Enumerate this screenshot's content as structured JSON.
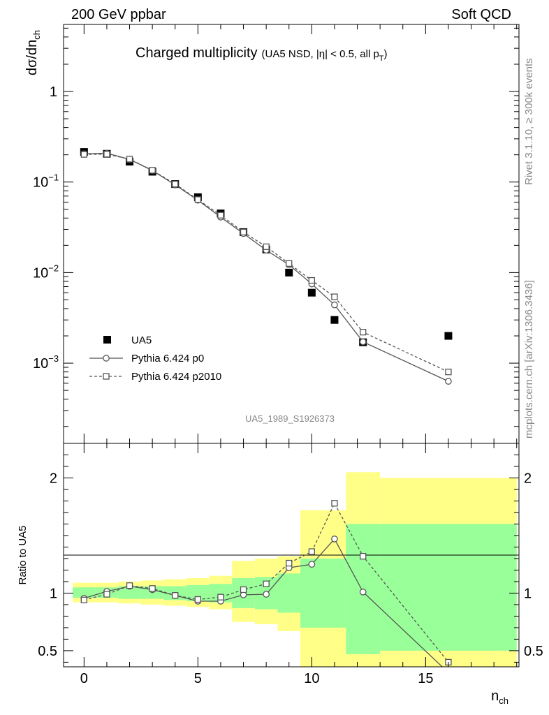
{
  "header": {
    "left": "200 GeV ppbar",
    "right": "Soft QCD"
  },
  "side_labels": {
    "rivet": "Rivet 3.1.10, ≥ 300k events",
    "mcplots": "mcplots.cern.ch [arXiv:1306.3436]"
  },
  "analysis_id": "UA5_1989_S1926373",
  "chart_data": [
    {
      "type": "scatter",
      "title": "Charged multiplicity",
      "subtitle": "(UA5 NSD, |η| < 0.5, all p",
      "subtitle_sub": "T",
      "subtitle_end": ")",
      "ylabel": "dσ/dn",
      "ylabel_sub": "ch",
      "yscale": "log",
      "xlim": [
        -0.9,
        19.1
      ],
      "ylim": [
        0.00013,
        5.5
      ],
      "yticks": [
        {
          "value": 1,
          "label": "1"
        },
        {
          "value": 0.1,
          "label": "10",
          "exp": "−1"
        },
        {
          "value": 0.01,
          "label": "10",
          "exp": "−2"
        },
        {
          "value": 0.001,
          "label": "10",
          "exp": "−3"
        }
      ],
      "legend": {
        "placement": "lower-left",
        "entries": [
          "UA5",
          "Pythia 6.424 p0",
          "Pythia 6.424 p2010"
        ]
      },
      "series": [
        {
          "name": "UA5",
          "marker": "filled-square",
          "x": [
            0,
            1,
            2,
            3,
            4,
            5,
            6,
            7,
            8,
            9,
            10,
            11,
            12.25,
            16
          ],
          "y": [
            0.215,
            0.205,
            0.168,
            0.13,
            0.095,
            0.068,
            0.045,
            0.028,
            0.018,
            0.01,
            0.006,
            0.003,
            0.0017,
            0.002
          ]
        },
        {
          "name": "Pythia 6.424 p0",
          "marker": "open-circle",
          "line": "solid",
          "x": [
            0,
            1,
            2,
            3,
            4,
            5,
            6,
            7,
            8,
            9,
            10,
            11,
            12.25,
            16
          ],
          "y": [
            0.205,
            0.208,
            0.178,
            0.134,
            0.093,
            0.063,
            0.041,
            0.027,
            0.0177,
            0.0122,
            0.0075,
            0.0044,
            0.00172,
            0.00063
          ]
        },
        {
          "name": "Pythia 6.424 p2010",
          "marker": "open-square",
          "line": "dashed",
          "x": [
            0,
            1,
            2,
            3,
            4,
            5,
            6,
            7,
            8,
            9,
            10,
            11,
            12.25,
            16
          ],
          "y": [
            0.202,
            0.203,
            0.179,
            0.135,
            0.095,
            0.064,
            0.043,
            0.028,
            0.0193,
            0.0126,
            0.0082,
            0.0054,
            0.0022,
            0.0008
          ]
        }
      ]
    },
    {
      "type": "scatter",
      "xlabel": "n",
      "xlabel_sub": "ch",
      "ylabel": "Ratio to UA5",
      "xlim": [
        -0.9,
        19.1
      ],
      "ylim": [
        0.36,
        2.3
      ],
      "xticks": [
        0,
        5,
        10,
        15
      ],
      "yticks": [
        {
          "value": 0.5,
          "label": "0.5"
        },
        {
          "value": 1,
          "label": "1"
        },
        {
          "value": 2,
          "label": "2"
        }
      ],
      "bands": [
        {
          "x0": -0.5,
          "x1": 0.5,
          "y_low": 0.92,
          "y_high": 1.09,
          "g_low": 0.96,
          "g_high": 1.05
        },
        {
          "x0": 0.5,
          "x1": 1.5,
          "y_low": 0.92,
          "y_high": 1.09,
          "g_low": 0.96,
          "g_high": 1.05
        },
        {
          "x0": 1.5,
          "x1": 2.5,
          "y_low": 0.91,
          "y_high": 1.1,
          "g_low": 0.95,
          "g_high": 1.06
        },
        {
          "x0": 2.5,
          "x1": 3.5,
          "y_low": 0.9,
          "y_high": 1.11,
          "g_low": 0.95,
          "g_high": 1.06
        },
        {
          "x0": 3.5,
          "x1": 4.5,
          "y_low": 0.89,
          "y_high": 1.12,
          "g_low": 0.94,
          "g_high": 1.06
        },
        {
          "x0": 4.5,
          "x1": 5.5,
          "y_low": 0.88,
          "y_high": 1.13,
          "g_low": 0.93,
          "g_high": 1.07
        },
        {
          "x0": 5.5,
          "x1": 6.5,
          "y_low": 0.86,
          "y_high": 1.15,
          "g_low": 0.92,
          "g_high": 1.08
        },
        {
          "x0": 6.5,
          "x1": 7.5,
          "y_low": 0.75,
          "y_high": 1.28,
          "g_low": 0.87,
          "g_high": 1.13
        },
        {
          "x0": 7.5,
          "x1": 8.5,
          "y_low": 0.73,
          "y_high": 1.3,
          "g_low": 0.86,
          "g_high": 1.14
        },
        {
          "x0": 8.5,
          "x1": 9.5,
          "y_low": 0.67,
          "y_high": 1.32,
          "g_low": 0.83,
          "g_high": 1.17
        },
        {
          "x0": 9.5,
          "x1": 10.5,
          "y_low": 0.3,
          "y_high": 1.72,
          "g_low": 0.7,
          "g_high": 1.3
        },
        {
          "x0": 10.5,
          "x1": 11.5,
          "y_low": 0.3,
          "y_high": 1.72,
          "g_low": 0.7,
          "g_high": 1.3
        },
        {
          "x0": 11.5,
          "x1": 13.0,
          "y_low": 0.3,
          "y_high": 2.05,
          "g_low": 0.47,
          "g_high": 1.6
        },
        {
          "x0": 13.0,
          "x1": 19.0,
          "y_low": 0.3,
          "y_high": 2.0,
          "g_low": 0.5,
          "g_high": 1.6
        }
      ],
      "series": [
        {
          "name": "Pythia 6.424 p0",
          "marker": "open-circle",
          "line": "solid",
          "x": [
            0,
            1,
            2,
            3,
            4,
            5,
            6,
            7,
            8,
            9,
            10,
            11,
            12.25,
            16
          ],
          "y": [
            0.955,
            1.015,
            1.06,
            1.03,
            0.98,
            0.93,
            0.93,
            0.985,
            0.99,
            1.22,
            1.25,
            1.47,
            1.01,
            0.31
          ]
        },
        {
          "name": "Pythia 6.424 p2010",
          "marker": "open-square",
          "line": "dashed",
          "x": [
            0,
            1,
            2,
            3,
            4,
            5,
            6,
            7,
            8,
            9,
            10,
            11,
            12.25,
            16
          ],
          "y": [
            0.94,
            0.99,
            1.065,
            1.04,
            0.98,
            0.945,
            0.965,
            1.03,
            1.08,
            1.26,
            1.36,
            1.78,
            1.32,
            0.4
          ]
        }
      ]
    }
  ]
}
